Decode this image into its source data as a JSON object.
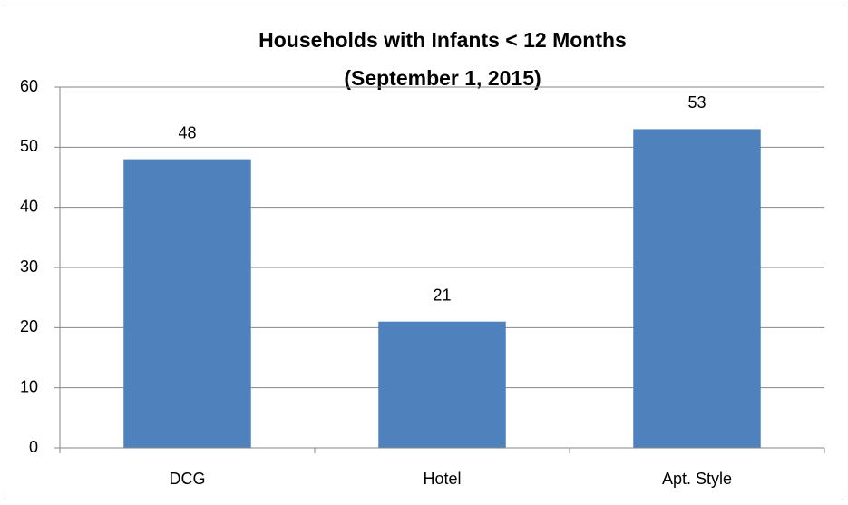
{
  "chart_data": {
    "type": "bar",
    "title": "Households with Infants < 12 Months",
    "subtitle": "(September 1, 2015)",
    "categories": [
      "DCG",
      "Hotel",
      "Apt. Style"
    ],
    "values": [
      48,
      21,
      53
    ],
    "color": "#4f81bd",
    "ylim": [
      0,
      60
    ],
    "yticks": [
      0,
      10,
      20,
      30,
      40,
      50,
      60
    ],
    "grid": true
  }
}
